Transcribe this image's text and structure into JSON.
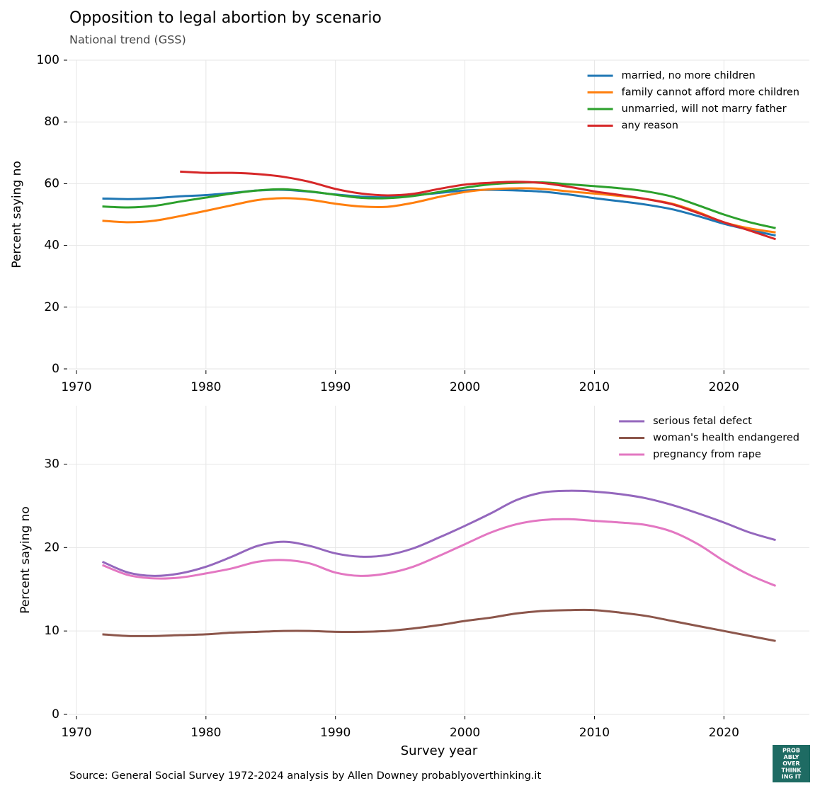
{
  "chart_data": [
    {
      "type": "line",
      "title": "Opposition to legal abortion by scenario",
      "subtitle": "National trend (GSS)",
      "y_label": "Percent saying no",
      "x": [
        1972,
        1974,
        1976,
        1978,
        1980,
        1982,
        1984,
        1986,
        1988,
        1990,
        1992,
        1994,
        1996,
        1998,
        2000,
        2002,
        2004,
        2006,
        2008,
        2010,
        2012,
        2014,
        2016,
        2018,
        2020,
        2022,
        2024
      ],
      "series": [
        {
          "name": "married, no more children",
          "color": "#1f77b4",
          "values": [
            55.2,
            55,
            55.3,
            55.9,
            56.3,
            57,
            57.8,
            58,
            57.4,
            56.5,
            55.8,
            55.6,
            56.2,
            57,
            57.8,
            58,
            57.8,
            57.4,
            56.5,
            55.3,
            54.3,
            53.2,
            51.7,
            49.5,
            47,
            45,
            43.2
          ]
        },
        {
          "name": "family cannot afford more children",
          "color": "#ff7f0e",
          "values": [
            48,
            47.5,
            48,
            49.5,
            51.2,
            53,
            54.7,
            55.3,
            54.8,
            53.5,
            52.6,
            52.5,
            53.8,
            55.7,
            57.3,
            58.2,
            58.5,
            58.3,
            57.5,
            56.8,
            56,
            55,
            53.5,
            50.8,
            47.5,
            45.5,
            44.2
          ]
        },
        {
          "name": "unmarried, will not marry father",
          "color": "#2ca02c",
          "values": [
            52.6,
            52.3,
            52.8,
            54.2,
            55.5,
            56.8,
            57.8,
            58.2,
            57.5,
            56.4,
            55.4,
            55.3,
            56,
            57.3,
            58.7,
            59.8,
            60.3,
            60.4,
            59.8,
            59.2,
            58.5,
            57.5,
            55.8,
            53,
            50,
            47.5,
            45.6
          ]
        },
        {
          "name": "any reason",
          "color": "#d62728",
          "values": [
            null,
            null,
            null,
            63.9,
            63.5,
            63.5,
            63.1,
            62.2,
            60.6,
            58.3,
            56.8,
            56.2,
            56.7,
            58.3,
            59.7,
            60.3,
            60.6,
            60.2,
            59,
            57.5,
            56.3,
            55,
            53.3,
            50.5,
            47.5,
            44.8,
            42
          ]
        }
      ],
      "xlim": [
        1969.4,
        2026.6
      ],
      "xticks": [
        1970,
        1980,
        1990,
        2000,
        2010,
        2020
      ],
      "ylim": [
        0,
        100
      ],
      "yticks": [
        0,
        20,
        40,
        60,
        80,
        100
      ],
      "grid": true,
      "legend": "upper right"
    },
    {
      "type": "line",
      "y_label": "Percent saying no",
      "x_label": "Survey year",
      "x": [
        1972,
        1974,
        1976,
        1978,
        1980,
        1982,
        1984,
        1986,
        1988,
        1990,
        1992,
        1994,
        1996,
        1998,
        2000,
        2002,
        2004,
        2006,
        2008,
        2010,
        2012,
        2014,
        2016,
        2018,
        2020,
        2022,
        2024
      ],
      "series": [
        {
          "name": "serious fetal defect",
          "color": "#9467bd",
          "values": [
            18.3,
            17,
            16.6,
            16.9,
            17.7,
            18.9,
            20.2,
            20.7,
            20.2,
            19.3,
            18.9,
            19.1,
            19.9,
            21.2,
            22.6,
            24.1,
            25.7,
            26.6,
            26.8,
            26.7,
            26.4,
            25.9,
            25.1,
            24.1,
            23,
            21.8,
            20.9
          ]
        },
        {
          "name": "woman's health endangered",
          "color": "#8c564b",
          "values": [
            9.6,
            9.4,
            9.4,
            9.5,
            9.6,
            9.8,
            9.9,
            10,
            10,
            9.9,
            9.9,
            10,
            10.3,
            10.7,
            11.2,
            11.6,
            12.1,
            12.4,
            12.5,
            12.5,
            12.2,
            11.8,
            11.2,
            10.6,
            10,
            9.4,
            8.8
          ]
        },
        {
          "name": "pregnancy from rape",
          "color": "#e377c2",
          "values": [
            17.9,
            16.7,
            16.3,
            16.4,
            16.9,
            17.5,
            18.3,
            18.5,
            18.1,
            17,
            16.6,
            16.9,
            17.7,
            19,
            20.4,
            21.8,
            22.8,
            23.3,
            23.4,
            23.2,
            23,
            22.7,
            21.9,
            20.4,
            18.4,
            16.7,
            15.4
          ]
        }
      ],
      "xlim": [
        1969.4,
        2026.6
      ],
      "xticks": [
        1970,
        1980,
        1990,
        2000,
        2010,
        2020
      ],
      "ylim": [
        0,
        37
      ],
      "yticks": [
        0,
        10,
        20,
        30
      ],
      "grid": true,
      "legend": "upper right"
    }
  ],
  "source": "Source: General Social Survey 1972-2024 analysis by Allen Downey probablyoverthinking.it",
  "logo": [
    "PROB",
    "ABLY",
    "OVER",
    "THINK",
    "ING IT"
  ]
}
